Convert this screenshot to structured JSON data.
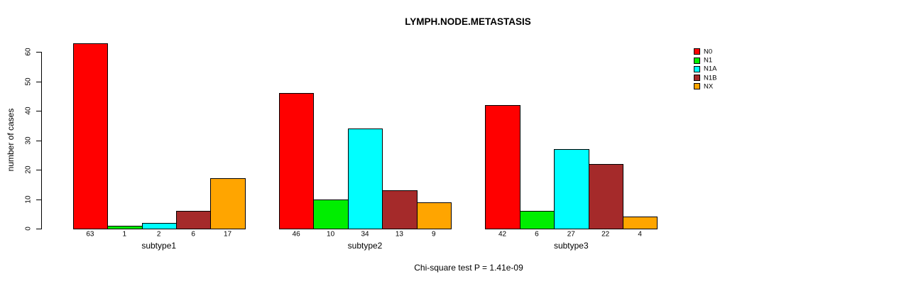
{
  "chart_data": {
    "type": "bar",
    "title": "LYMPH.NODE.METASTASIS",
    "ylabel": "number of cases",
    "xlabel": "",
    "categories": [
      "subtype1",
      "subtype2",
      "subtype3"
    ],
    "series": [
      {
        "name": "N0",
        "color": "#FF0000",
        "values": [
          63,
          46,
          42
        ]
      },
      {
        "name": "N1",
        "color": "#00EE00",
        "values": [
          1,
          10,
          6
        ]
      },
      {
        "name": "N1A",
        "color": "#00FFFF",
        "values": [
          2,
          34,
          27
        ]
      },
      {
        "name": "N1B",
        "color": "#A52A2A",
        "values": [
          6,
          13,
          22
        ]
      },
      {
        "name": "NX",
        "color": "#FFA500",
        "values": [
          17,
          9,
          4
        ]
      }
    ],
    "bar_value_labels": {
      "subtype1": [
        63,
        1,
        2,
        6,
        17
      ],
      "subtype2": [
        46,
        10,
        34,
        13,
        9
      ],
      "subtype3": [
        42,
        6,
        27,
        22,
        4
      ]
    },
    "y_ticks": [
      0,
      10,
      20,
      30,
      40,
      50,
      60
    ],
    "ylim": [
      0,
      63
    ],
    "grid": false,
    "legend_position": "top-right",
    "legend_entries": [
      "N0",
      "N1",
      "N1A",
      "N1B",
      "NX"
    ],
    "annotation": "Chi-square test P = 1.41e-09",
    "axis_color": "#000000",
    "background_color": "#ffffff"
  }
}
